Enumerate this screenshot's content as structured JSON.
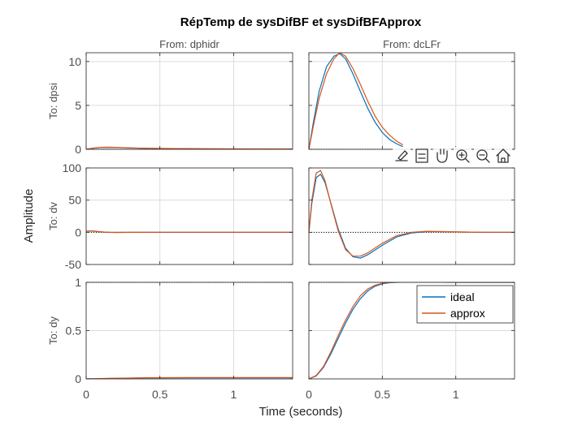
{
  "figure": {
    "title": "RépTemp de sysDifBF et sysDifBFApprox",
    "ylabel": "Amplitude",
    "xlabel": "Time (seconds)"
  },
  "toolbar": {
    "icons": [
      "brush-icon",
      "data-tips-icon",
      "pan-hand-icon",
      "zoom-in-icon",
      "zoom-out-icon",
      "home-icon"
    ]
  },
  "colors": {
    "ideal": "#0072BD",
    "approx": "#D95319",
    "axes": "#262626",
    "grid": "#dcdcdc",
    "ticklabel": "#4d4d4d"
  },
  "chart_data": {
    "type": "line",
    "title": "RépTemp de sysDifBF et sysDifBFApprox",
    "xlabel": "Time (seconds)",
    "ylabel": "Amplitude",
    "xlim": [
      0,
      1.4
    ],
    "xticks": [
      0,
      0.5,
      1
    ],
    "grid": true,
    "legend": {
      "entries": [
        "ideal",
        "approx"
      ],
      "placement": "inside-right of bottom-right axes"
    },
    "columns": [
      "From: dphidr",
      "From: dcLFr"
    ],
    "rows": [
      {
        "label": "To: dpsi",
        "ylim": [
          0,
          11
        ],
        "yticks": [
          0,
          5,
          10
        ],
        "steady": 0
      },
      {
        "label": "To: dv",
        "ylim": [
          -50,
          100
        ],
        "yticks": [
          -50,
          0,
          50,
          100
        ],
        "steady": 0
      },
      {
        "label": "To: dy",
        "ylim": [
          0,
          1
        ],
        "yticks": [
          0,
          0.5,
          1
        ],
        "steady": 1
      }
    ],
    "panels": [
      {
        "row": 0,
        "col": 0,
        "series": [
          {
            "name": "ideal",
            "x": [
              0,
              0.05,
              0.1,
              0.15,
              0.2,
              0.3,
              0.4,
              0.6,
              0.8,
              1.0,
              1.4
            ],
            "y": [
              0,
              0.12,
              0.2,
              0.22,
              0.2,
              0.15,
              0.11,
              0.07,
              0.05,
              0.04,
              0.03
            ]
          },
          {
            "name": "approx",
            "x": [
              0,
              0.05,
              0.1,
              0.15,
              0.2,
              0.3,
              0.4,
              0.6,
              0.8,
              1.0,
              1.4
            ],
            "y": [
              0,
              0.14,
              0.22,
              0.24,
              0.22,
              0.16,
              0.12,
              0.08,
              0.06,
              0.05,
              0.04
            ]
          }
        ]
      },
      {
        "row": 0,
        "col": 1,
        "series": [
          {
            "name": "ideal",
            "x": [
              0,
              0.03,
              0.07,
              0.12,
              0.17,
              0.21,
              0.25,
              0.3,
              0.35,
              0.4,
              0.45,
              0.5,
              0.55,
              0.6,
              0.64
            ],
            "y": [
              0,
              3.0,
              6.6,
              9.4,
              10.6,
              10.9,
              10.3,
              8.6,
              6.6,
              4.7,
              3.1,
              1.9,
              1.1,
              0.6,
              0.3
            ]
          },
          {
            "name": "approx",
            "x": [
              0,
              0.03,
              0.07,
              0.12,
              0.17,
              0.21,
              0.25,
              0.3,
              0.35,
              0.4,
              0.45,
              0.5,
              0.55,
              0.6,
              0.64
            ],
            "y": [
              0,
              2.6,
              5.8,
              8.6,
              10.3,
              11.0,
              10.6,
              9.2,
              7.4,
              5.5,
              3.8,
              2.5,
              1.6,
              0.9,
              0.5
            ]
          }
        ]
      },
      {
        "row": 1,
        "col": 0,
        "series": [
          {
            "name": "ideal",
            "x": [
              0,
              0.02,
              0.05,
              0.08,
              0.12,
              0.16,
              0.2,
              0.3,
              0.5,
              0.8,
              1.4
            ],
            "y": [
              1.5,
              2.0,
              1.8,
              1.0,
              0.3,
              -0.1,
              -0.2,
              -0.1,
              0,
              0,
              0
            ]
          },
          {
            "name": "approx",
            "x": [
              0,
              0.02,
              0.05,
              0.08,
              0.12,
              0.16,
              0.2,
              0.3,
              0.5,
              0.8,
              1.4
            ],
            "y": [
              1.7,
              2.2,
              2.0,
              1.2,
              0.4,
              -0.1,
              -0.2,
              -0.1,
              0,
              0,
              0
            ]
          }
        ]
      },
      {
        "row": 1,
        "col": 1,
        "series": [
          {
            "name": "ideal",
            "x": [
              0,
              0.02,
              0.05,
              0.08,
              0.11,
              0.15,
              0.2,
              0.25,
              0.3,
              0.35,
              0.4,
              0.5,
              0.6,
              0.7,
              0.8,
              0.9,
              1.0,
              1.2,
              1.4
            ],
            "y": [
              0,
              45,
              85,
              90,
              77,
              45,
              5,
              -25,
              -38,
              -40,
              -35,
              -20,
              -7,
              -1,
              1,
              1,
              0.5,
              0,
              0
            ]
          },
          {
            "name": "approx",
            "x": [
              0,
              0.02,
              0.05,
              0.08,
              0.11,
              0.15,
              0.2,
              0.25,
              0.3,
              0.35,
              0.4,
              0.5,
              0.6,
              0.7,
              0.8,
              0.9,
              1.0,
              1.2,
              1.4
            ],
            "y": [
              0,
              50,
              92,
              96,
              80,
              44,
              2,
              -27,
              -37,
              -37,
              -32,
              -17,
              -5,
              0,
              1.5,
              1,
              0.5,
              0,
              0
            ]
          }
        ]
      },
      {
        "row": 2,
        "col": 0,
        "series": [
          {
            "name": "ideal",
            "x": [
              0,
              0.2,
              0.4,
              0.7,
              1.0,
              1.4
            ],
            "y": [
              0,
              0.006,
              0.01,
              0.012,
              0.012,
              0.012
            ]
          },
          {
            "name": "approx",
            "x": [
              0,
              0.2,
              0.4,
              0.7,
              1.0,
              1.4
            ],
            "y": [
              0,
              0.007,
              0.012,
              0.014,
              0.014,
              0.014
            ]
          }
        ]
      },
      {
        "row": 2,
        "col": 1,
        "series": [
          {
            "name": "ideal",
            "x": [
              0,
              0.05,
              0.1,
              0.15,
              0.2,
              0.25,
              0.3,
              0.35,
              0.4,
              0.45,
              0.5,
              0.55,
              0.6,
              0.7,
              0.8,
              0.9,
              1.0,
              1.2,
              1.4
            ],
            "y": [
              0,
              0.03,
              0.12,
              0.26,
              0.42,
              0.58,
              0.72,
              0.83,
              0.91,
              0.96,
              0.985,
              0.997,
              1.0,
              1.003,
              1.002,
              1.001,
              1.0,
              1.0,
              1.0
            ]
          },
          {
            "name": "approx",
            "x": [
              0,
              0.05,
              0.1,
              0.15,
              0.2,
              0.25,
              0.3,
              0.35,
              0.4,
              0.45,
              0.5,
              0.55,
              0.6,
              0.7,
              0.8,
              0.9,
              1.0,
              1.2,
              1.4
            ],
            "y": [
              0,
              0.035,
              0.13,
              0.28,
              0.45,
              0.61,
              0.75,
              0.86,
              0.93,
              0.97,
              0.99,
              1.0,
              1.002,
              1.003,
              1.002,
              1.001,
              1.0,
              1.0,
              1.0
            ]
          }
        ]
      }
    ]
  }
}
